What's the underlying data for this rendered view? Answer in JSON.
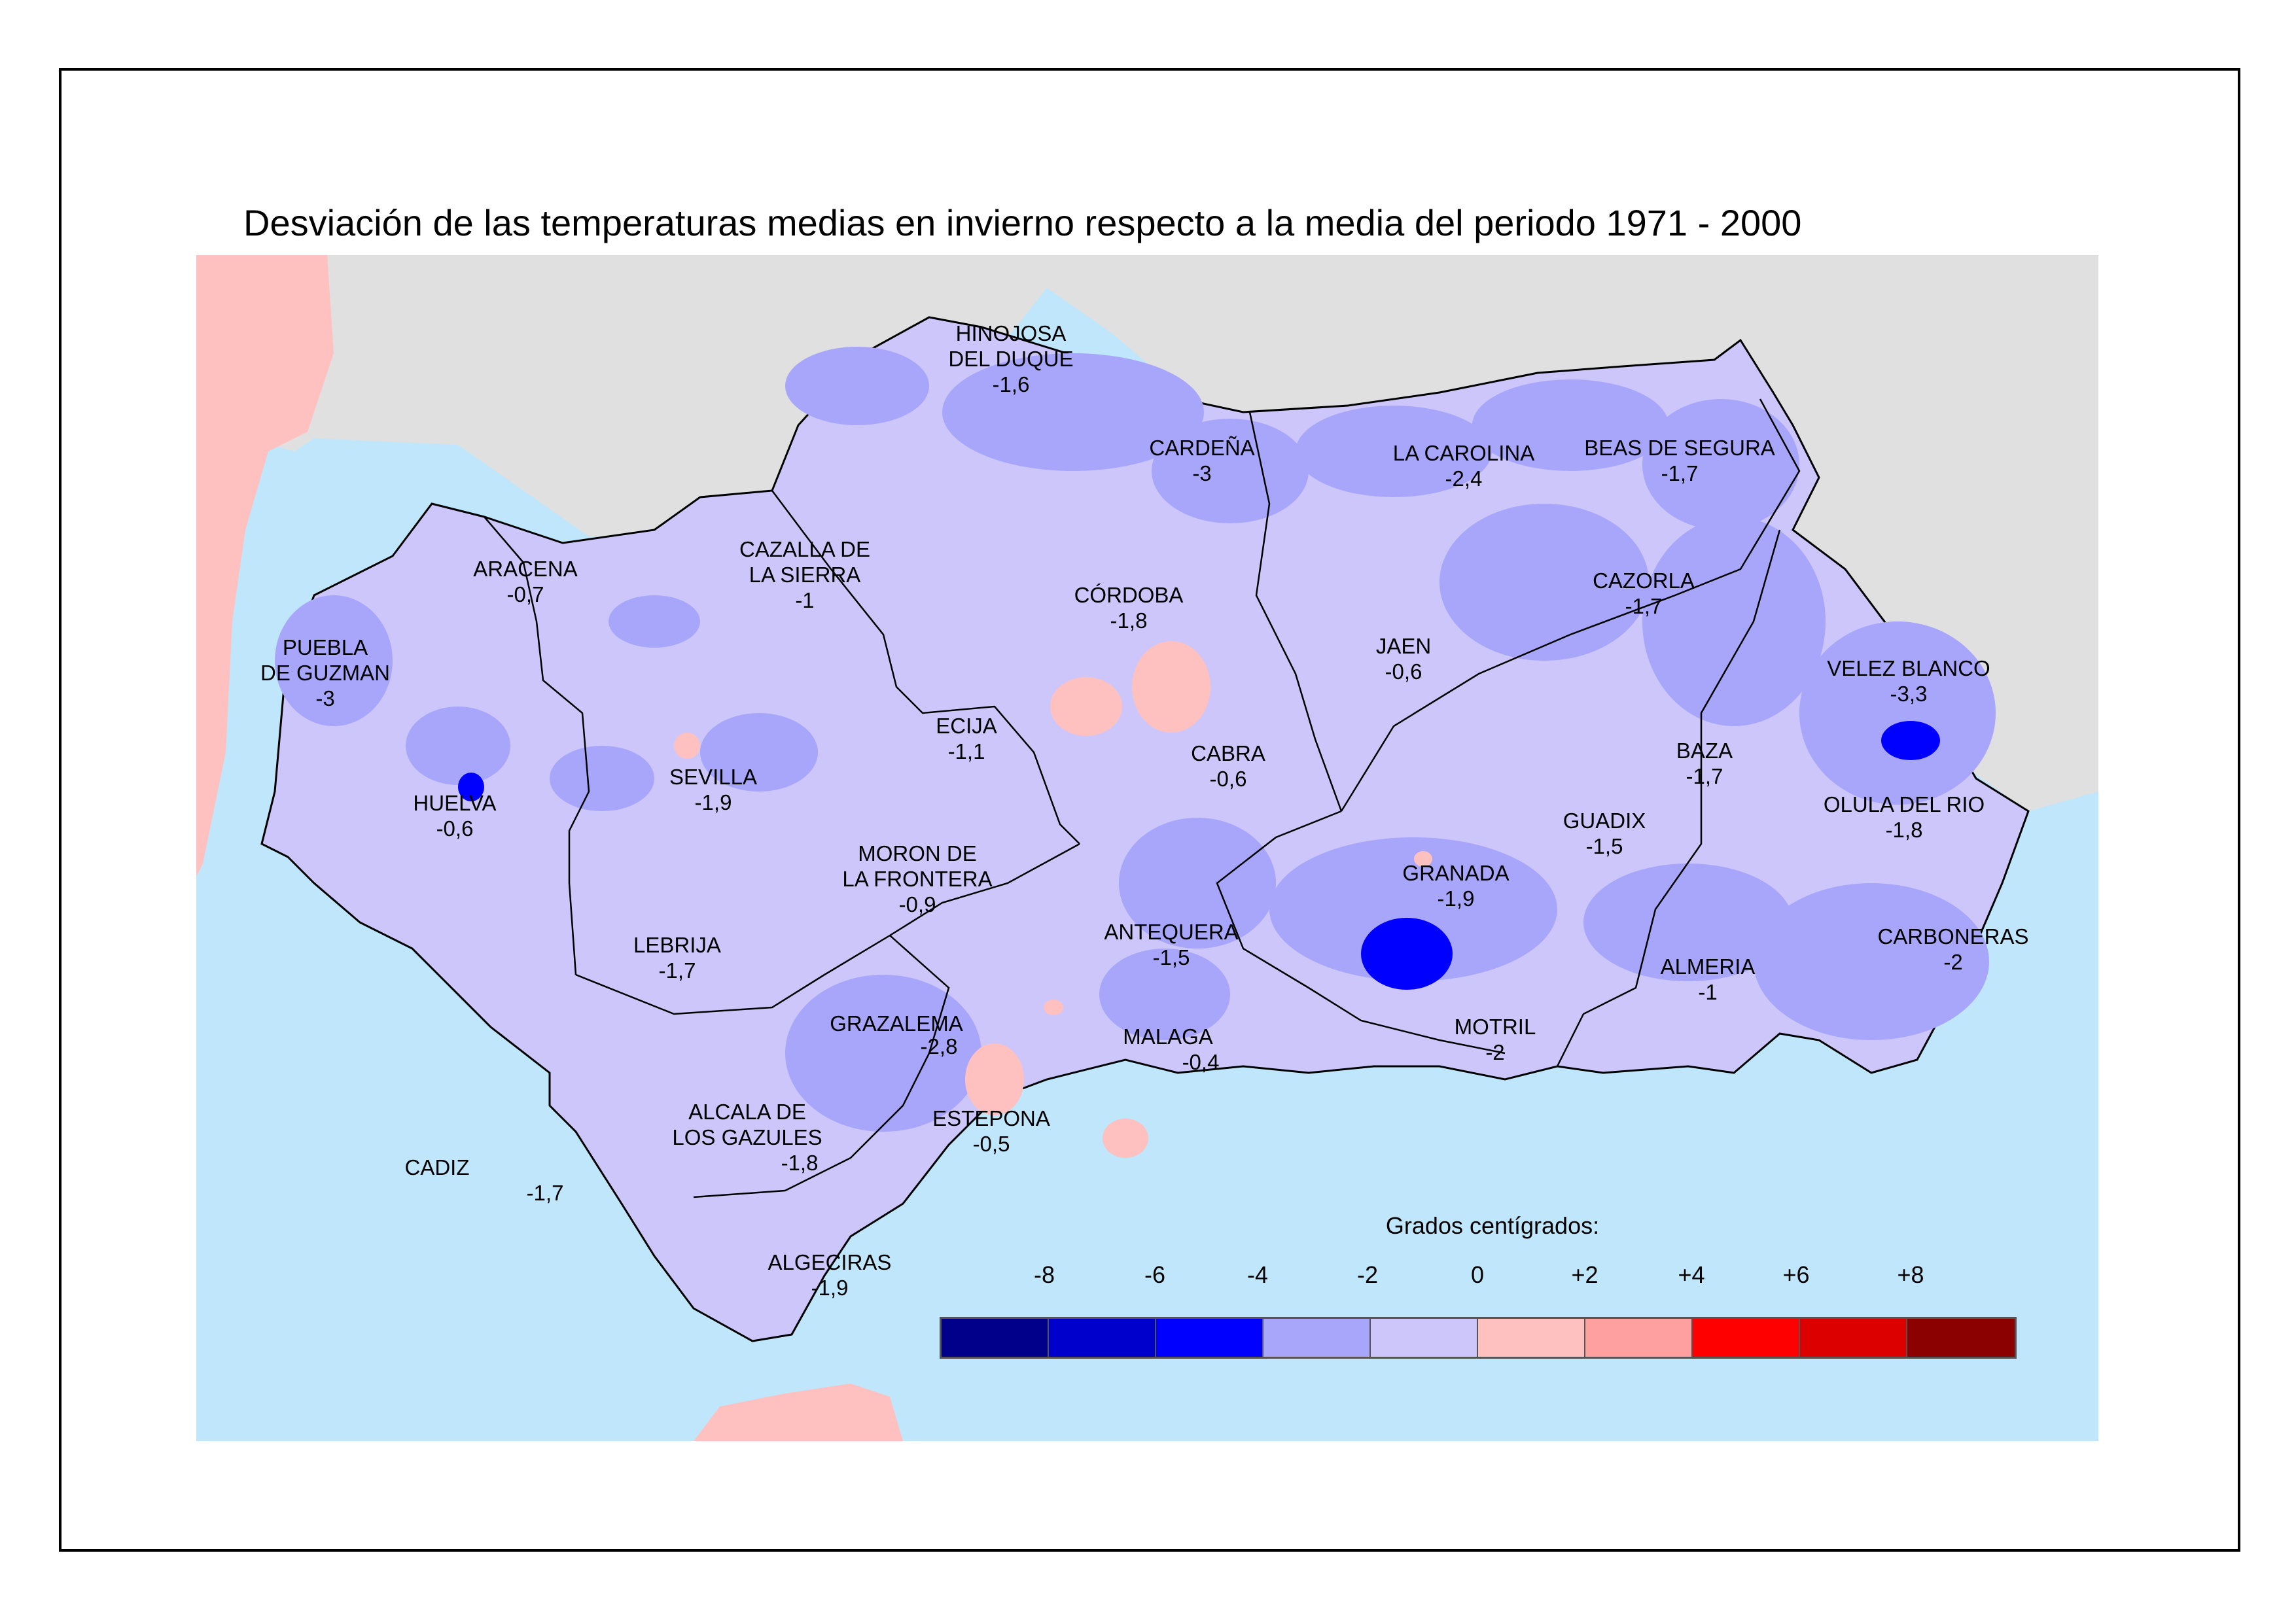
{
  "title": "Desviación de las temperaturas medias en invierno respecto a la media del periodo 1971 - 2000",
  "colors": {
    "sea": "#bfe6fb",
    "outside_land": "#e0e0e0",
    "portugal_africa": "#ffc0c0",
    "region_base": "#ccc6fa",
    "region_cool": "#a8a6fa",
    "strong_cold": "#0000ff",
    "warm_patch": "#ffc0c0"
  },
  "places": [
    {
      "name": "HINOJOSA\nDEL DUQUE",
      "value": "-1,6"
    },
    {
      "name": "CARDEÑA",
      "value": "-3"
    },
    {
      "name": "LA CAROLINA",
      "value": "-2,4"
    },
    {
      "name": "BEAS DE SEGURA",
      "value": "-1,7"
    },
    {
      "name": "ARACENA",
      "value": "-0,7"
    },
    {
      "name": "CAZALLA DE\nLA SIERRA",
      "value": "-1"
    },
    {
      "name": "CÓRDOBA",
      "value": "-1,8"
    },
    {
      "name": "CAZORLA",
      "value": "-1,7"
    },
    {
      "name": "PUEBLA\nDE GUZMAN",
      "value": "-3"
    },
    {
      "name": "JAEN",
      "value": "-0,6"
    },
    {
      "name": "VELEZ BLANCO",
      "value": "-3,3"
    },
    {
      "name": "ECIJA",
      "value": "-1,1"
    },
    {
      "name": "SEVILLA",
      "value": "-1,9"
    },
    {
      "name": "CABRA",
      "value": "-0,6"
    },
    {
      "name": "BAZA",
      "value": "-1,7"
    },
    {
      "name": "HUELVA",
      "value": "-0,6"
    },
    {
      "name": "OLULA DEL RIO",
      "value": "-1,8"
    },
    {
      "name": "GUADIX",
      "value": "-1,5"
    },
    {
      "name": "MORON DE\nLA FRONTERA",
      "value": "-0,9"
    },
    {
      "name": "GRANADA",
      "value": "-1,9"
    },
    {
      "name": "LEBRIJA",
      "value": "-1,7"
    },
    {
      "name": "ANTEQUERA",
      "value": "-1,5"
    },
    {
      "name": "CARBONERAS",
      "value": "-2"
    },
    {
      "name": "ALMERIA",
      "value": "-1"
    },
    {
      "name": "GRAZALEMA",
      "value": "-2,8"
    },
    {
      "name": "MALAGA",
      "value": "-0,4"
    },
    {
      "name": "MOTRIL",
      "value": "-2"
    },
    {
      "name": "ALCALA DE\nLOS GAZULES",
      "value": "-1,8"
    },
    {
      "name": "ESTEPONA",
      "value": "-0,5"
    },
    {
      "name": "CADIZ",
      "value": "-1,7"
    },
    {
      "name": "ALGECIRAS",
      "value": "-1,9"
    }
  ],
  "legend": {
    "title": "Grados centígrados:",
    "ticks": [
      "-8",
      "-6",
      "-4",
      "-2",
      "0",
      "+2",
      "+4",
      "+6",
      "+8"
    ],
    "swatches": [
      "#00008b",
      "#0000cd",
      "#0000ff",
      "#a8a6fa",
      "#ccc6fa",
      "#ffc0c0",
      "#ffa0a0",
      "#ff0000",
      "#dd0000",
      "#8b0000"
    ]
  }
}
